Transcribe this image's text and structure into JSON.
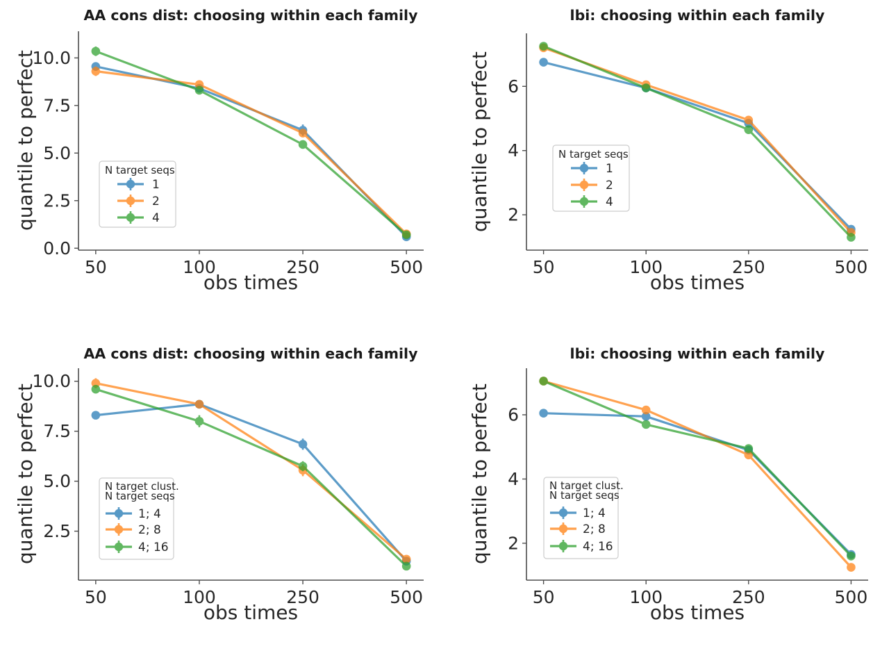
{
  "figure": {
    "background": "#ffffff"
  },
  "chart_data": {
    "type": "line",
    "x_categories": [
      "50",
      "100",
      "250",
      "500"
    ],
    "xlabel": "obs times",
    "ylabel": "quantile to perfect",
    "palette": {
      "blue": "#1f77b4",
      "orange": "#ff7f0e",
      "green": "#2ca02c"
    },
    "grid": false,
    "legend_position": "center-left",
    "charts": [
      {
        "id": "aa-cons-dist-seqs",
        "title": "AA cons dist: choosing within each family",
        "xlabel": "obs times",
        "ylabel": "quantile to perfect",
        "ylim": [
          -0.1,
          11.4
        ],
        "yticks": [
          0.0,
          2.5,
          5.0,
          7.5,
          10.0
        ],
        "ytick_labels": [
          "0.0",
          "2.5",
          "5.0",
          "7.5",
          "10.0"
        ],
        "legend": {
          "title_lines": [
            "N target seqs"
          ]
        },
        "series": [
          {
            "name": "1",
            "color": "#1f77b4",
            "values": [
              9.55,
              8.4,
              6.2,
              0.6
            ],
            "err": [
              0.22,
              0.15,
              0.3,
              0.1
            ]
          },
          {
            "name": "2",
            "color": "#ff7f0e",
            "values": [
              9.3,
              8.6,
              6.05,
              0.75
            ],
            "err": [
              0.25,
              0.2,
              0.2,
              0.1
            ]
          },
          {
            "name": "4",
            "color": "#2ca02c",
            "values": [
              10.35,
              8.3,
              5.45,
              0.7
            ],
            "err": [
              0.25,
              0.22,
              0.22,
              0.1
            ]
          }
        ]
      },
      {
        "id": "lbi-seqs",
        "title": "lbi: choosing within each family",
        "xlabel": "obs times",
        "ylabel": "quantile to perfect",
        "ylim": [
          0.9,
          7.65
        ],
        "yticks": [
          2,
          4,
          6
        ],
        "ytick_labels": [
          "2",
          "4",
          "6"
        ],
        "legend": {
          "title_lines": [
            "N target seqs"
          ]
        },
        "series": [
          {
            "name": "1",
            "color": "#1f77b4",
            "values": [
              6.75,
              5.95,
              4.85,
              1.55
            ],
            "err": [
              0.12,
              0.1,
              0.12,
              0.08
            ]
          },
          {
            "name": "2",
            "color": "#ff7f0e",
            "values": [
              7.2,
              6.05,
              4.95,
              1.45
            ],
            "err": [
              0.12,
              0.1,
              0.12,
              0.08
            ]
          },
          {
            "name": "4",
            "color": "#2ca02c",
            "values": [
              7.25,
              5.95,
              4.65,
              1.3
            ],
            "err": [
              0.12,
              0.1,
              0.12,
              0.08
            ]
          }
        ]
      },
      {
        "id": "aa-cons-dist-clust",
        "title": "AA cons dist: choosing within each family",
        "xlabel": "obs times",
        "ylabel": "quantile to perfect",
        "ylim": [
          0.05,
          10.65
        ],
        "yticks": [
          2.5,
          5.0,
          7.5,
          10.0
        ],
        "ytick_labels": [
          "2.5",
          "5.0",
          "7.5",
          "10.0"
        ],
        "legend": {
          "title_lines": [
            "N target clust.",
            "N target seqs"
          ]
        },
        "series": [
          {
            "name": "1; 4",
            "color": "#1f77b4",
            "values": [
              8.3,
              8.85,
              6.85,
              1.0
            ],
            "err": [
              0.2,
              0.15,
              0.28,
              0.1
            ]
          },
          {
            "name": "2; 8",
            "color": "#ff7f0e",
            "values": [
              9.9,
              8.85,
              5.55,
              1.1
            ],
            "err": [
              0.25,
              0.2,
              0.3,
              0.1
            ]
          },
          {
            "name": "4; 16",
            "color": "#2ca02c",
            "values": [
              9.6,
              8.0,
              5.75,
              0.75
            ],
            "err": [
              0.2,
              0.3,
              0.25,
              0.1
            ]
          }
        ]
      },
      {
        "id": "lbi-clust",
        "title": "lbi: choosing within each family",
        "xlabel": "obs times",
        "ylabel": "quantile to perfect",
        "ylim": [
          0.85,
          7.45
        ],
        "yticks": [
          2,
          4,
          6
        ],
        "ytick_labels": [
          "2",
          "4",
          "6"
        ],
        "legend": {
          "title_lines": [
            "N target clust.",
            "N target seqs"
          ]
        },
        "series": [
          {
            "name": "1; 4",
            "color": "#1f77b4",
            "values": [
              6.05,
              5.95,
              4.9,
              1.65
            ],
            "err": [
              0.1,
              0.12,
              0.1,
              0.08
            ]
          },
          {
            "name": "2; 8",
            "color": "#ff7f0e",
            "values": [
              7.05,
              6.15,
              4.75,
              1.25
            ],
            "err": [
              0.1,
              0.12,
              0.12,
              0.08
            ]
          },
          {
            "name": "4; 16",
            "color": "#2ca02c",
            "values": [
              7.05,
              5.7,
              4.95,
              1.6
            ],
            "err": [
              0.12,
              0.1,
              0.1,
              0.08
            ]
          }
        ]
      }
    ]
  }
}
